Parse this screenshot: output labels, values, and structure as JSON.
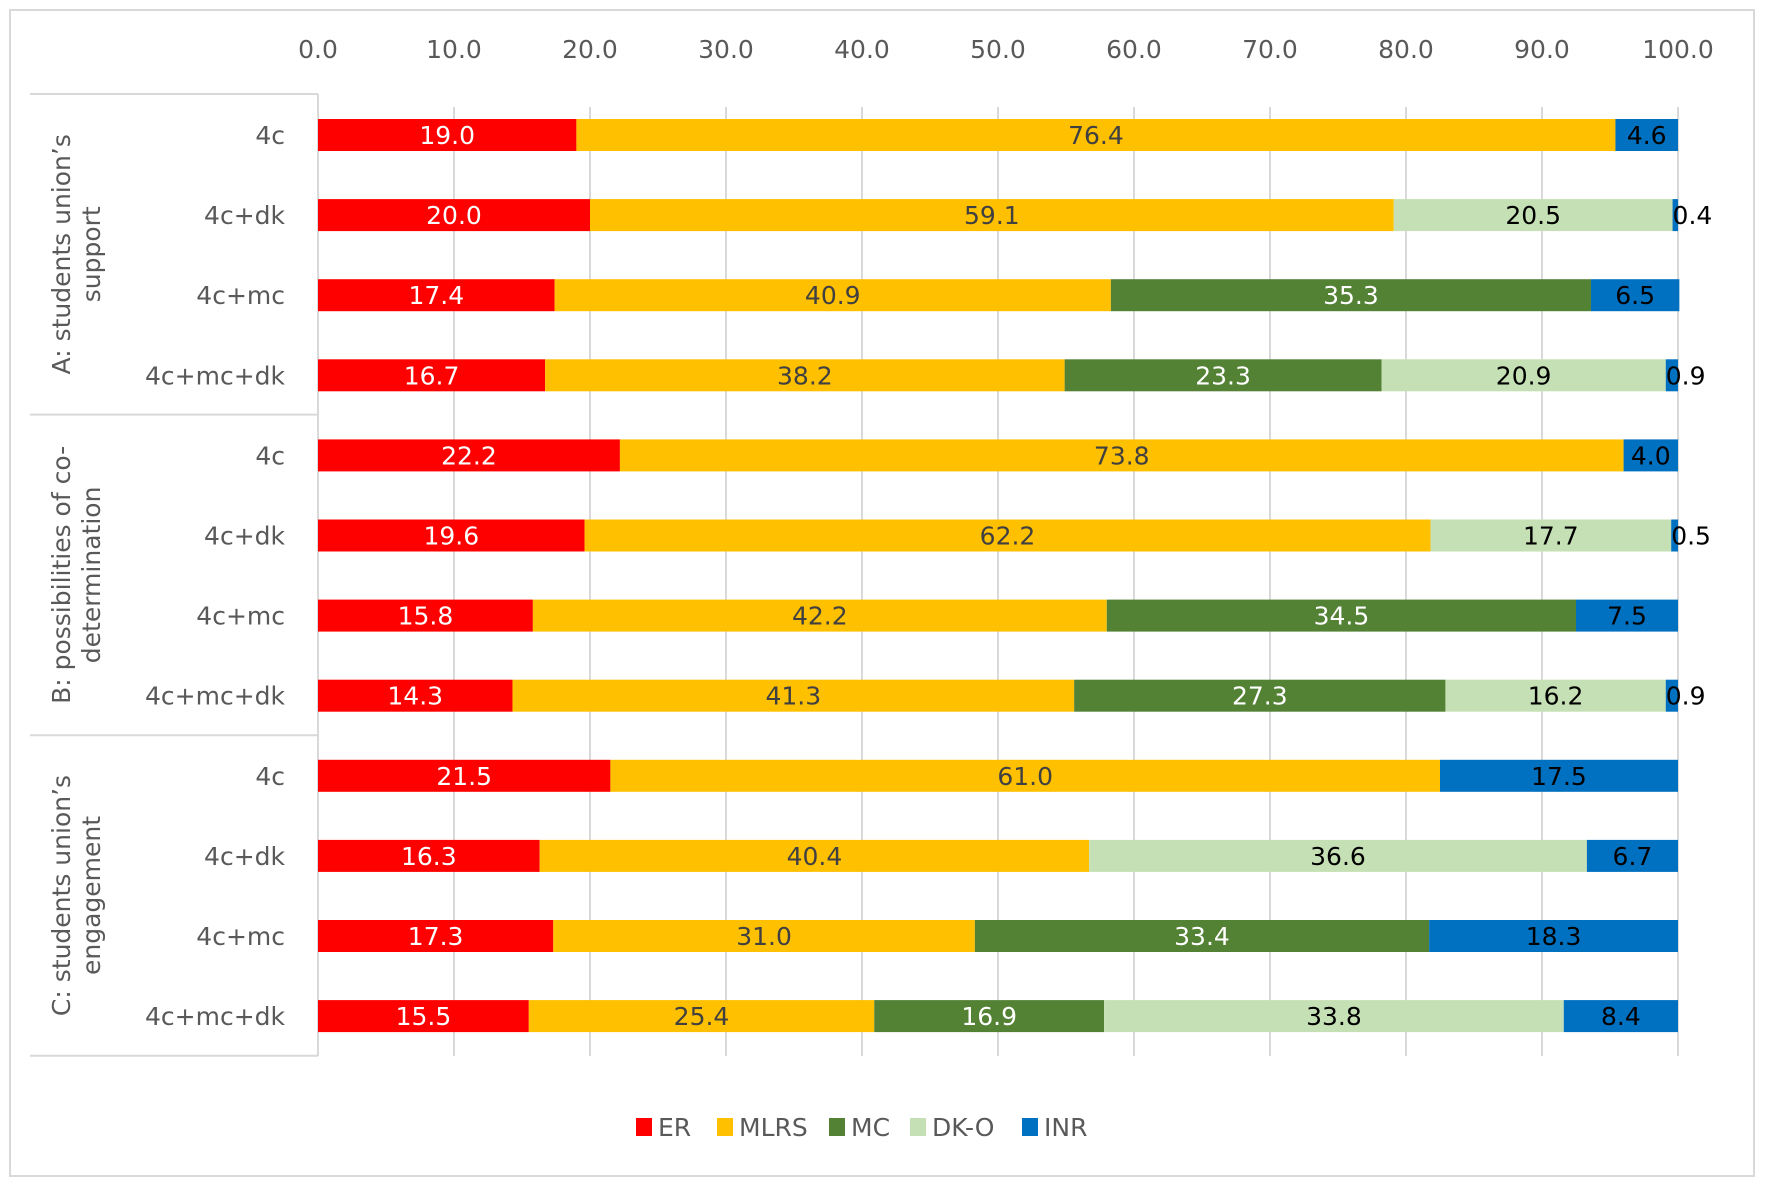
{
  "chart_data": {
    "type": "bar",
    "orientation": "horizontal",
    "stacked": true,
    "title": "",
    "xlabel": "",
    "ylabel": "",
    "xlim": [
      0,
      100
    ],
    "x_ticks": [
      "0.0",
      "10.0",
      "20.0",
      "30.0",
      "40.0",
      "50.0",
      "60.0",
      "70.0",
      "80.0",
      "90.0",
      "100.0"
    ],
    "x_axis_position": "top",
    "grid": true,
    "legend_position": "bottom",
    "groups": [
      {
        "label": [
          "A: students union’s",
          "support"
        ],
        "categories": [
          "4c",
          "4c+dk",
          "4c+mc",
          "4c+mc+dk"
        ]
      },
      {
        "label": [
          "B: possibilities of co-",
          "determination"
        ],
        "categories": [
          "4c",
          "4c+dk",
          "4c+mc",
          "4c+mc+dk"
        ]
      },
      {
        "label": [
          "C: students union’s",
          "engagement"
        ],
        "categories": [
          "4c",
          "4c+dk",
          "4c+mc",
          "4c+mc+dk"
        ]
      }
    ],
    "series": [
      {
        "name": "ER",
        "color": "#ff0000",
        "label_color": "#ffffff",
        "values": [
          19.0,
          20.0,
          17.4,
          16.7,
          22.2,
          19.6,
          15.8,
          14.3,
          21.5,
          16.3,
          17.3,
          15.5
        ]
      },
      {
        "name": "MLRS",
        "color": "#ffc000",
        "label_color": "#404040",
        "values": [
          76.4,
          59.1,
          40.9,
          38.2,
          73.8,
          62.2,
          42.2,
          41.3,
          61.0,
          40.4,
          31.0,
          25.4
        ]
      },
      {
        "name": "MC",
        "color": "#548235",
        "label_color": "#ffffff",
        "values": [
          null,
          null,
          35.3,
          23.3,
          null,
          null,
          34.5,
          27.3,
          null,
          null,
          33.4,
          16.9
        ]
      },
      {
        "name": "DK-O",
        "color": "#c5e0b4",
        "label_color": "#000000",
        "values": [
          null,
          20.5,
          null,
          20.9,
          null,
          17.7,
          null,
          16.2,
          null,
          36.6,
          null,
          33.8
        ]
      },
      {
        "name": "INR",
        "color": "#0070c0",
        "label_color": "#000000",
        "values": [
          4.6,
          0.4,
          6.5,
          0.9,
          4.0,
          0.5,
          7.5,
          0.9,
          17.5,
          6.7,
          18.3,
          8.4
        ]
      }
    ]
  }
}
